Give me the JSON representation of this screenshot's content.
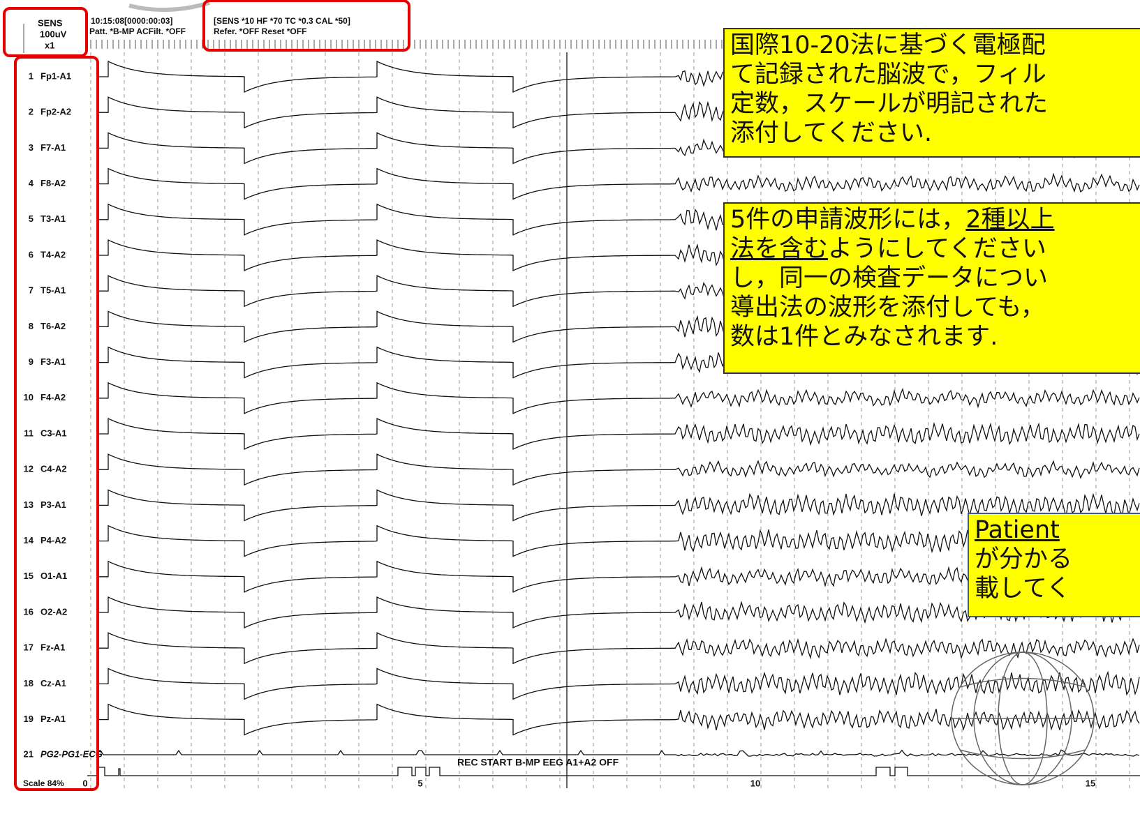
{
  "header": {
    "sensitivity": [
      "SENS",
      "100uV",
      "x1"
    ],
    "time": "10:15:08[0000:00:03]",
    "pattern": "Patt. *B-MP  ACFilt. *OFF",
    "settings": "[SENS *10  HF *70  TC *0.3  CAL *50]",
    "reference": "Refer. *OFF  Reset *OFF"
  },
  "channels": [
    {
      "number": "1",
      "label": "Fp1-A1"
    },
    {
      "number": "2",
      "label": "Fp2-A2"
    },
    {
      "number": "3",
      "label": "F7-A1"
    },
    {
      "number": "4",
      "label": "F8-A2"
    },
    {
      "number": "5",
      "label": "T3-A1"
    },
    {
      "number": "6",
      "label": "T4-A2"
    },
    {
      "number": "7",
      "label": "T5-A1"
    },
    {
      "number": "8",
      "label": "T6-A2"
    },
    {
      "number": "9",
      "label": "F3-A1"
    },
    {
      "number": "10",
      "label": "F4-A2"
    },
    {
      "number": "11",
      "label": "C3-A1"
    },
    {
      "number": "12",
      "label": "C4-A2"
    },
    {
      "number": "13",
      "label": "P3-A1"
    },
    {
      "number": "14",
      "label": "P4-A2"
    },
    {
      "number": "15",
      "label": "O1-A1"
    },
    {
      "number": "16",
      "label": "O2-A2"
    },
    {
      "number": "17",
      "label": "Fz-A1"
    },
    {
      "number": "18",
      "label": "Cz-A1"
    },
    {
      "number": "19",
      "label": "Pz-A1"
    },
    {
      "number": "21",
      "label": "PG2-PG1-ECG"
    }
  ],
  "time_axis": {
    "scale": "Scale 84%",
    "ticks": [
      "0",
      "5",
      "10",
      "15"
    ]
  },
  "event": "REC START B-MP EEG  A1+A2 OFF",
  "notes": [
    {
      "lines": [
        [
          {
            "text": "国際10-20法に基づく電極配"
          }
        ],
        [
          {
            "text": "て記録された脳波で，フィル"
          }
        ],
        [
          {
            "text": "定数，スケールが明記された"
          }
        ],
        [
          {
            "text": "添付してください."
          }
        ]
      ]
    },
    {
      "lines": [
        [
          {
            "text": "5件の申請波形には，"
          },
          {
            "text": "2種以上",
            "underline": true
          }
        ],
        [
          {
            "text": "法を含む",
            "underline": true
          },
          {
            "text": "ようにしてください"
          }
        ],
        [
          {
            "text": "し，同一の検査データについ"
          }
        ],
        [
          {
            "text": "導出法の波形を添付しても，"
          }
        ],
        [
          {
            "text": "数は1件とみなされます."
          }
        ]
      ]
    },
    {
      "lines": [
        [
          {
            "text": "Patient ",
            "underline": true
          }
        ],
        [
          {
            "text": "が分かる"
          }
        ],
        [
          {
            "text": "載してく"
          }
        ]
      ]
    }
  ]
}
